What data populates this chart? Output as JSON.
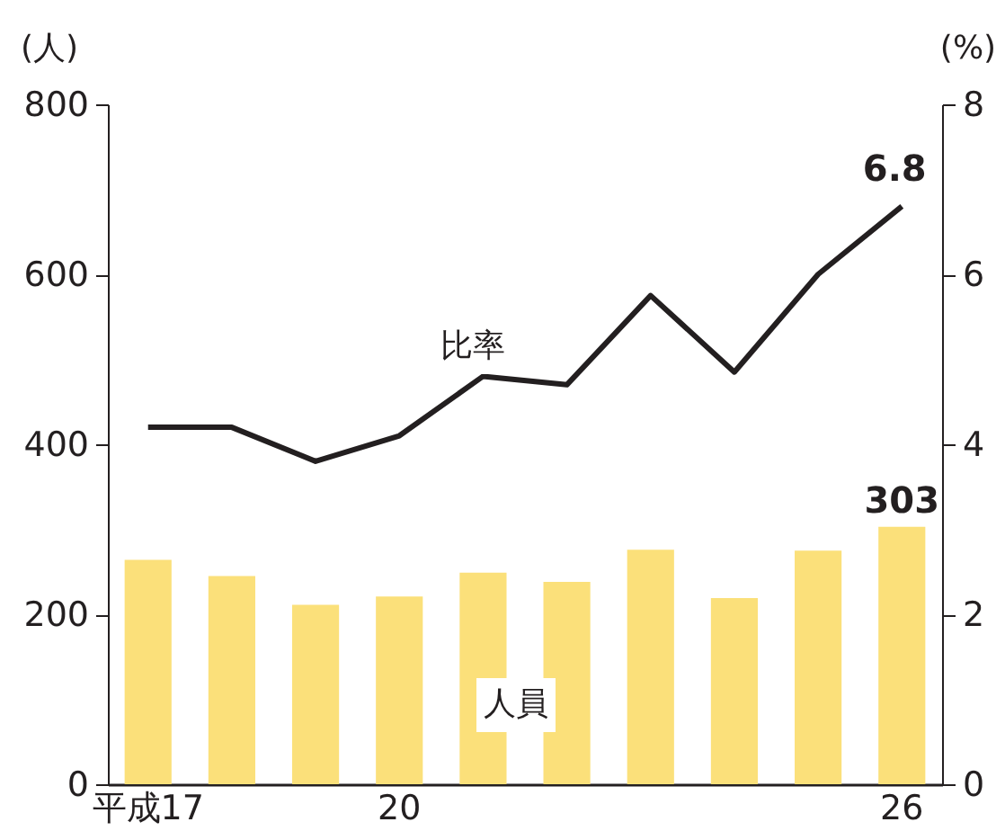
{
  "chart_data": {
    "type": "bar",
    "categories": [
      "平成17",
      null,
      null,
      "20",
      null,
      null,
      null,
      null,
      null,
      "26"
    ],
    "series": [
      {
        "color": "#fbe07a",
        "values": [
          264,
          245,
          211,
          221,
          249,
          238,
          276,
          219,
          275,
          303
        ],
        "value_labels": [
          null,
          null,
          null,
          null,
          null,
          null,
          null,
          null,
          null,
          "303"
        ]
      },
      {
        "type": "line",
        "axis": "y2",
        "color": "#231f20",
        "values": [
          4.2,
          4.2,
          3.8,
          4.1,
          4.8,
          4.7,
          5.75,
          4.85,
          6.0,
          6.8
        ],
        "value_labels": [
          null,
          null,
          null,
          null,
          null,
          null,
          null,
          null,
          null,
          "6.8"
        ]
      }
    ],
    "ylabel": "(人)",
    "y2label": "(%)",
    "ylim": [
      0,
      800
    ],
    "yticks": [
      0,
      200,
      400,
      600,
      800
    ],
    "y2lim": [
      0,
      8
    ],
    "y2ticks": [
      0,
      2,
      4,
      6,
      8
    ],
    "annotations": [
      "比率",
      "人員"
    ],
    "grid": false,
    "marker": "none",
    "line_style": "solid"
  }
}
